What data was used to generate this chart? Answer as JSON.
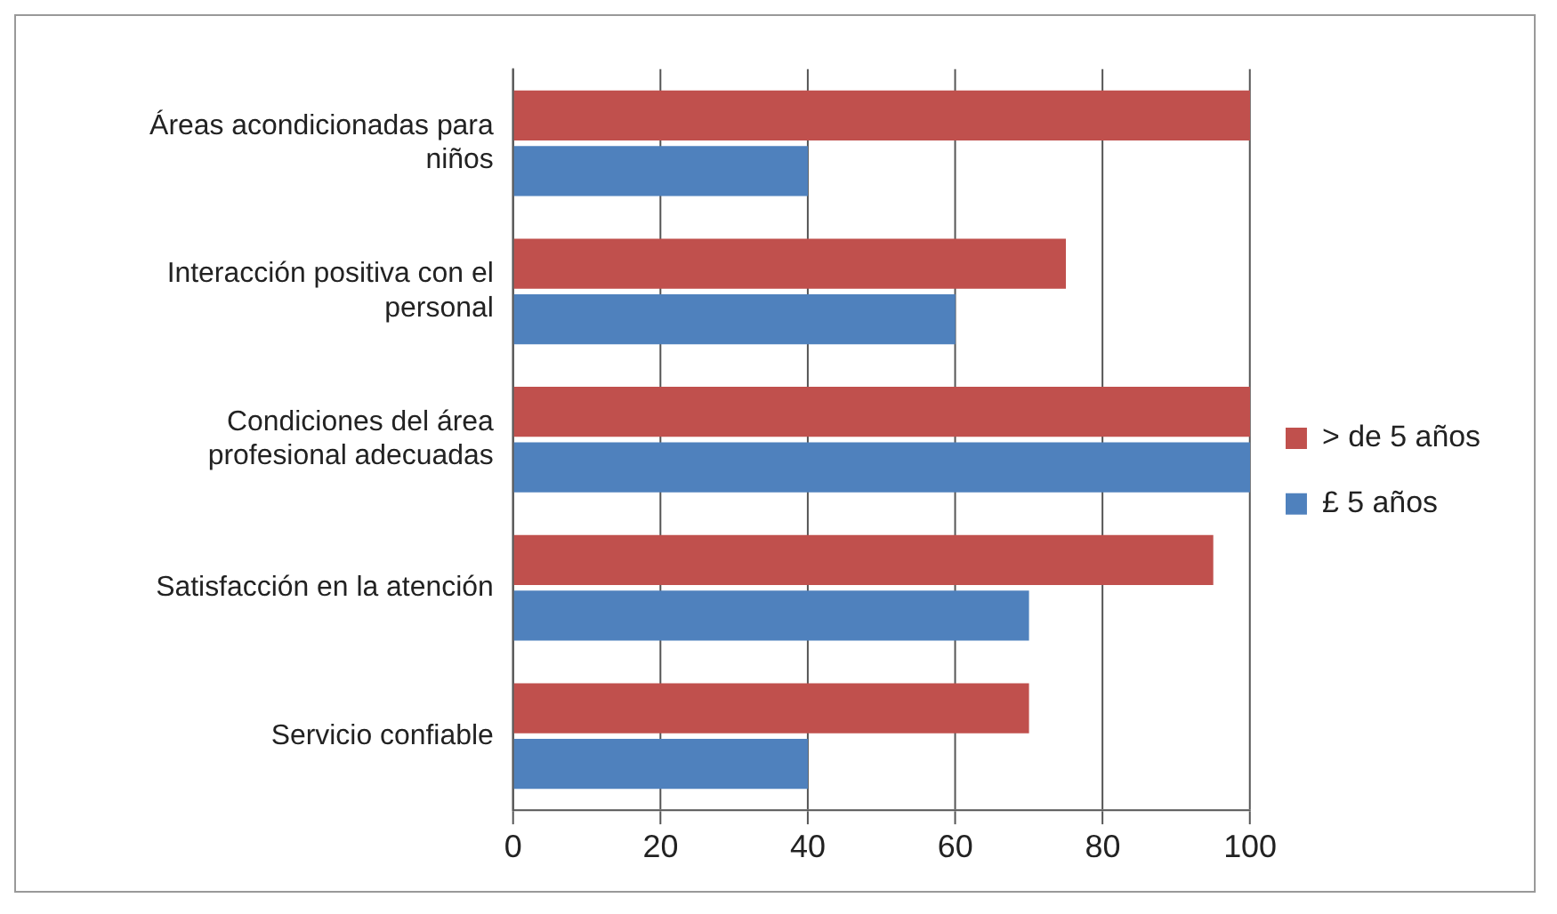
{
  "chart_data": {
    "type": "bar",
    "orientation": "horizontal",
    "categories": [
      "Áreas acondicionadas para niños",
      "Interacción positiva con el personal",
      "Condiciones del área profesional adecuadas",
      "Satisfacción en la atención",
      "Servicio confiable"
    ],
    "series": [
      {
        "name": "> de 5 años",
        "color": "#c0504d",
        "values": [
          100,
          75,
          100,
          95,
          70
        ]
      },
      {
        "name": "£ 5 años",
        "color": "#4f81bd",
        "values": [
          40,
          60,
          100,
          70,
          40
        ]
      }
    ],
    "xlim": [
      0,
      100
    ],
    "xticks": [
      0,
      20,
      40,
      60,
      80,
      100
    ],
    "grid": "x",
    "legend": "right"
  }
}
